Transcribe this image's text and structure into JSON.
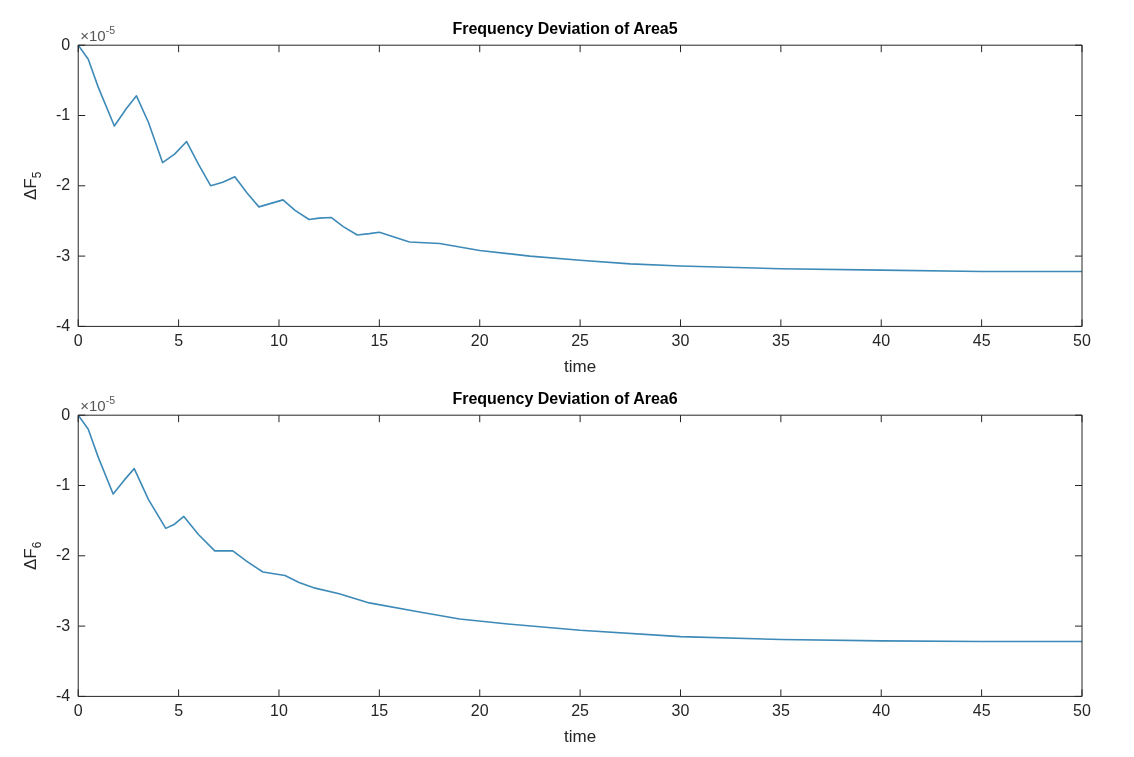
{
  "chart_data": [
    {
      "type": "line",
      "title": "Frequency Deviation of Area5",
      "xlabel": "time",
      "ylabel": "ΔF$_{5}$",
      "annotations": [
        "×10$^{-5}$"
      ],
      "xlim": [
        0,
        50
      ],
      "xticks": [
        0,
        5,
        10,
        15,
        20,
        25,
        30,
        35,
        40,
        45,
        50
      ],
      "ylim": [
        -4,
        0
      ],
      "yticks": [
        -4,
        -3,
        -2,
        -1,
        0
      ],
      "series": [
        {
          "color": "#3d8ab8",
          "x": [
            0,
            0.5,
            1,
            1.8,
            2.4,
            2.9,
            3.5,
            4.2,
            4.8,
            5.4,
            6,
            6.6,
            7.2,
            7.8,
            8.4,
            9,
            9.6,
            10.2,
            10.8,
            11.5,
            12,
            12.6,
            13.2,
            13.9,
            14.5,
            15,
            16.5,
            18,
            20,
            22.5,
            25,
            27.5,
            30,
            35,
            40,
            45,
            50
          ],
          "values": [
            0,
            -0.2,
            -0.6,
            -1.15,
            -0.9,
            -0.72,
            -1.1,
            -1.67,
            -1.55,
            -1.37,
            -1.7,
            -2.0,
            -1.95,
            -1.87,
            -2.1,
            -2.3,
            -2.25,
            -2.2,
            -2.35,
            -2.48,
            -2.46,
            -2.45,
            -2.58,
            -2.7,
            -2.68,
            -2.66,
            -2.8,
            -2.82,
            -2.92,
            -3.0,
            -3.06,
            -3.11,
            -3.14,
            -3.18,
            -3.2,
            -3.22,
            -3.22
          ]
        }
      ]
    },
    {
      "type": "line",
      "title": "Frequency Deviation of Area6",
      "xlabel": "time",
      "ylabel": "ΔF$_{6}$",
      "annotations": [
        "×10$^{-5}$"
      ],
      "xlim": [
        0,
        50
      ],
      "xticks": [
        0,
        5,
        10,
        15,
        20,
        25,
        30,
        35,
        40,
        45,
        50
      ],
      "ylim": [
        -4,
        0
      ],
      "yticks": [
        -4,
        -3,
        -2,
        -1,
        0
      ],
      "series": [
        {
          "color": "#3d8ab8",
          "x": [
            0,
            0.5,
            1,
            1.74,
            2.3,
            2.79,
            3.5,
            4.36,
            4.8,
            5.26,
            6,
            6.8,
            7.7,
            8.4,
            9.2,
            10.3,
            11,
            11.8,
            13,
            14.5,
            17,
            19,
            21.4,
            25,
            30,
            35,
            40,
            45,
            50
          ],
          "values": [
            0,
            -0.2,
            -0.6,
            -1.12,
            -0.92,
            -0.76,
            -1.2,
            -1.61,
            -1.55,
            -1.44,
            -1.7,
            -1.93,
            -1.93,
            -2.08,
            -2.23,
            -2.28,
            -2.38,
            -2.46,
            -2.54,
            -2.67,
            -2.8,
            -2.9,
            -2.97,
            -3.06,
            -3.15,
            -3.19,
            -3.21,
            -3.22,
            -3.22
          ]
        }
      ]
    }
  ]
}
